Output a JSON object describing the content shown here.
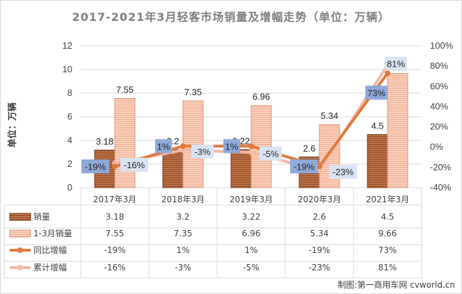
{
  "chart_data": {
    "type": "bar",
    "title": "2017-2021年3月轻客市场销量及增幅走势（单位：万辆）",
    "ylabel": "单位：万辆",
    "categories": [
      "2017年3月",
      "2018年3月",
      "2019年3月",
      "2020年3月",
      "2021年3月"
    ],
    "ylim": [
      0,
      12
    ],
    "yticks": [
      0,
      2,
      4,
      6,
      8,
      10,
      12
    ],
    "y2lim": [
      -40,
      100
    ],
    "y2ticks": [
      -40,
      -20,
      0,
      20,
      40,
      60,
      80,
      100
    ],
    "y2tick_labels": [
      "-40%",
      "-20%",
      "0%",
      "20%",
      "40%",
      "60%",
      "80%",
      "100%"
    ],
    "series": [
      {
        "name": "销量",
        "kind": "bar",
        "axis": "left",
        "values": [
          3.18,
          3.2,
          3.22,
          2.6,
          4.5
        ],
        "labels": [
          "3.18",
          "3.2",
          "3.22",
          "2.6",
          "4.5"
        ]
      },
      {
        "name": "1-3月销量",
        "kind": "bar",
        "axis": "left",
        "values": [
          7.55,
          7.35,
          6.96,
          5.34,
          9.66
        ],
        "labels": [
          "7.55",
          "7.35",
          "6.96",
          "5.34",
          "9.66"
        ]
      },
      {
        "name": "同比增幅",
        "kind": "line",
        "axis": "right",
        "values": [
          -19,
          1,
          1,
          -19,
          73
        ],
        "labels": [
          "-19%",
          "1%",
          "1%",
          "-19%",
          "73%"
        ]
      },
      {
        "name": "累计增幅",
        "kind": "line",
        "axis": "right",
        "values": [
          -16,
          -3,
          -5,
          -23,
          81
        ],
        "labels": [
          "-16%",
          "-3%",
          "-5%",
          "-23%",
          "81%"
        ]
      }
    ],
    "data_table": true,
    "credit": "制图:第一商用车网 cvworld.cn"
  },
  "colors": {
    "bar1_fill": "#a0522d",
    "bar1_stripe": "#c98a5a",
    "bar2_fill": "#f4b79a",
    "bar2_stripe": "#fbe0d2",
    "line1": "#e07a3a",
    "line2": "#f2b8a8",
    "badge1": "#8ea9db",
    "badge2": "#dae3f3",
    "grid": "#d9d9d9",
    "title": "#7f7f7f"
  }
}
